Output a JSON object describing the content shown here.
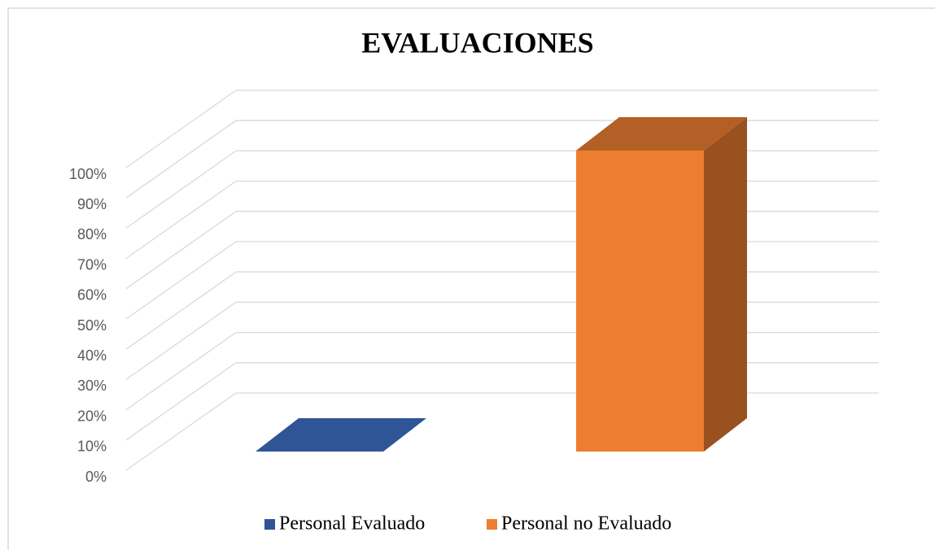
{
  "chart_data": {
    "type": "bar3d",
    "title": "EVALUACIONES",
    "series": [
      {
        "name": "Personal Evaluado",
        "color": "#2f5597",
        "values": [
          0
        ]
      },
      {
        "name": "Personal no Evaluado",
        "color": "#ed7d31",
        "values": [
          100
        ]
      }
    ],
    "ylim": [
      0,
      100
    ],
    "yticks": [
      {
        "value": 0,
        "label": "0%"
      },
      {
        "value": 10,
        "label": "10%"
      },
      {
        "value": 20,
        "label": "20%"
      },
      {
        "value": 30,
        "label": "30%"
      },
      {
        "value": 40,
        "label": "40%"
      },
      {
        "value": 50,
        "label": "50%"
      },
      {
        "value": 60,
        "label": "60%"
      },
      {
        "value": 70,
        "label": "70%"
      },
      {
        "value": 80,
        "label": "80%"
      },
      {
        "value": 90,
        "label": "90%"
      },
      {
        "value": 100,
        "label": "100%"
      }
    ],
    "grid": true
  }
}
